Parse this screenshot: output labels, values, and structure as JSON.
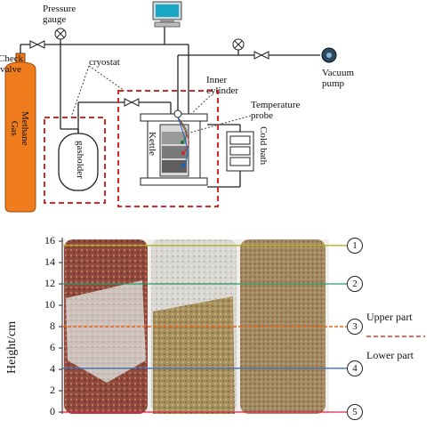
{
  "apparatus": {
    "pressure_gauge": "Pressure\ngauge",
    "check_valve": "Check\nvalve",
    "methane_gas": "Methane\nGas",
    "cryostat": "cryostat",
    "gasholder": "gasholder",
    "inner_cylinder": "Inner\ncylinder",
    "temperature_probe": "Temperature\nprobe",
    "kettle": "Kettle",
    "cold_bath": "Cold bath",
    "vacuum_pump": "Vacuum\npump"
  },
  "sample_figure": {
    "y_axis_label": "Height/cm",
    "y_ticks": [
      0,
      2,
      4,
      6,
      8,
      10,
      12,
      14,
      16
    ],
    "ylim": [
      0,
      16
    ],
    "upper_part": "Upper part",
    "lower_part": "Lower part",
    "layers": [
      {
        "number": "1",
        "height": 15.6,
        "color": "#b5b326"
      },
      {
        "number": "2",
        "height": 12.0,
        "color": "#2e9a6a"
      },
      {
        "number": "3",
        "height": 8.0,
        "color": "#e8661c"
      },
      {
        "number": "4",
        "height": 4.1,
        "color": "#3f6fb8"
      },
      {
        "number": "5",
        "height": 0.0,
        "color": "#d9264e"
      }
    ],
    "divider_color": "#e03a2a"
  }
}
